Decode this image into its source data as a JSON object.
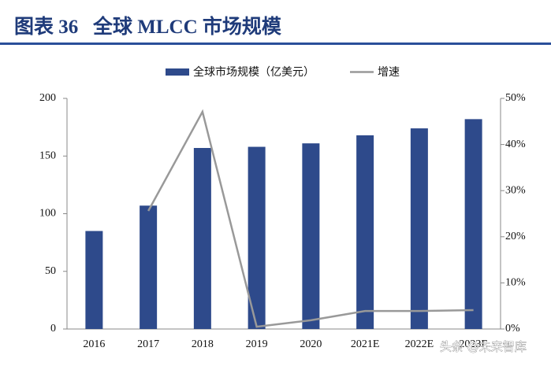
{
  "chart_data": {
    "type": "bar-line",
    "title": "图表 36   全球 MLCC 市场规模",
    "categories": [
      "2016",
      "2017",
      "2018",
      "2019",
      "2020",
      "2021E",
      "2022E",
      "2023E"
    ],
    "series": [
      {
        "name": "全球市场规模（亿美元）",
        "color": "#2e4a8b",
        "type": "bar",
        "values": [
          85,
          107,
          157,
          158,
          161,
          168,
          174,
          182
        ]
      },
      {
        "name": "增速",
        "color": "#999999",
        "type": "line",
        "axis": "y2",
        "values": [
          null,
          25.6,
          47.1,
          0.5,
          1.9,
          3.9,
          3.9,
          4.1
        ]
      }
    ],
    "ylim": [
      0,
      200
    ],
    "yticks": [
      0,
      50,
      100,
      150,
      200
    ],
    "y2lim": [
      0,
      50
    ],
    "y2ticks": [
      {
        "value": 0,
        "label": "0%"
      },
      {
        "value": 10,
        "label": "10%"
      },
      {
        "value": 20,
        "label": "20%"
      },
      {
        "value": 30,
        "label": "30%"
      },
      {
        "value": 40,
        "label": "40%"
      },
      {
        "value": 50,
        "label": "50%"
      }
    ],
    "legend": "top",
    "watermark": "头条 @未来智库"
  }
}
